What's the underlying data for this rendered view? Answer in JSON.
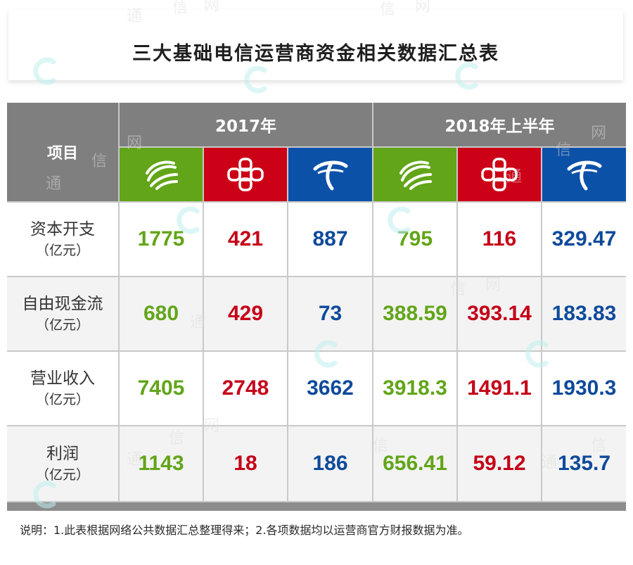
{
  "title": "三大基础电信运营商资金相关数据汇总表",
  "header": {
    "item_label": "项目",
    "periods": [
      "2017年",
      "2018年上半年"
    ]
  },
  "operators": [
    {
      "logo": "china-mobile-logo",
      "color": "#62a519"
    },
    {
      "logo": "china-unicom-logo",
      "color": "#cc0016"
    },
    {
      "logo": "china-telecom-logo",
      "color": "#0c51a8"
    }
  ],
  "rows": [
    {
      "name": "资本开支",
      "unit": "（亿元）",
      "values": [
        "1775",
        "421",
        "887",
        "795",
        "116",
        "329.47"
      ]
    },
    {
      "name": "自由现金流",
      "unit": "（亿元）",
      "values": [
        "680",
        "429",
        "73",
        "388.59",
        "393.14",
        "183.83"
      ]
    },
    {
      "name": "营业收入",
      "unit": "（亿元）",
      "values": [
        "7405",
        "2748",
        "3662",
        "3918.3",
        "1491.1",
        "1930.3"
      ]
    },
    {
      "name": "利润",
      "unit": "（亿元）",
      "values": [
        "1143",
        "18",
        "186",
        "656.41",
        "59.12",
        "135.7"
      ]
    }
  ],
  "note": "说明：1.此表根据网络公共数据汇总整理得来；2.各项数据均以运营商官方财报数据为准。",
  "watermark": [
    "通",
    "信",
    "网"
  ],
  "colors": {
    "header_gray": "#7f7f7f",
    "mobile_green": "#62a519",
    "unicom_red": "#cc0016",
    "telecom_blue": "#0c51a8"
  }
}
